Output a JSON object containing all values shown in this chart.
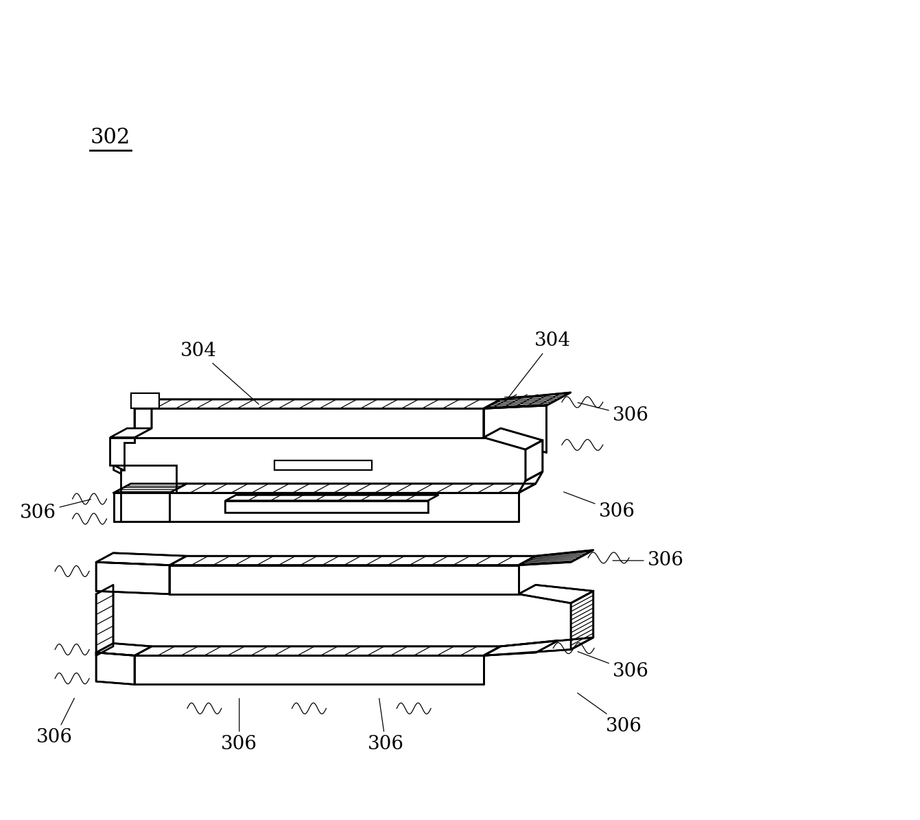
{
  "bg_color": "#ffffff",
  "line_color": "#000000",
  "lw_thin": 1.0,
  "lw_med": 1.8,
  "lw_thick": 2.2,
  "fig_width": 13.41,
  "fig_height": 11.95,
  "label_fontsize": 20
}
